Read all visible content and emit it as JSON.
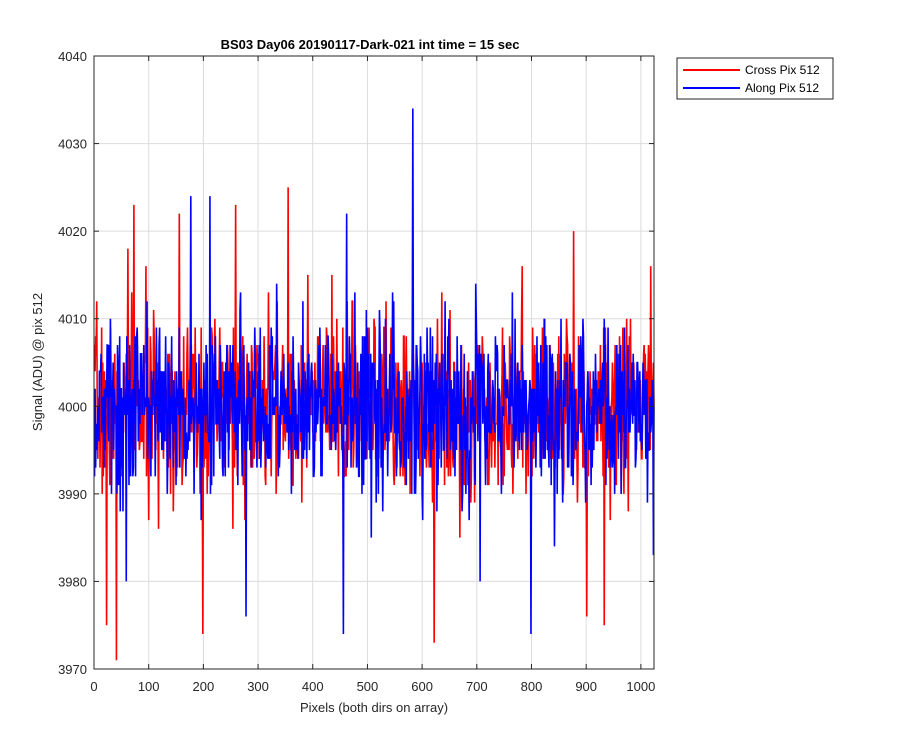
{
  "chart_data": {
    "type": "line",
    "title": "BS03 Day06 20190117-Dark-021 int time = 15 sec",
    "xlabel": "Pixels (both dirs on array)",
    "ylabel": "Signal (ADU) @ pix 512",
    "xlim": [
      0,
      1024
    ],
    "ylim": [
      3970,
      4040
    ],
    "xticks": [
      0,
      100,
      200,
      300,
      400,
      500,
      600,
      700,
      800,
      900,
      1000
    ],
    "yticks": [
      3970,
      3980,
      3990,
      4000,
      4010,
      4020,
      4030,
      4040
    ],
    "grid": true,
    "legend_position": "outside top-right",
    "noise": {
      "center": 4000,
      "typical_spread": 5,
      "note_values_estimated": true
    },
    "series": [
      {
        "name": "Cross Pix 512",
        "color": "#ff0000",
        "seed": 7,
        "extremes": [
          {
            "x": 40,
            "y": 3971
          },
          {
            "x": 22,
            "y": 3975
          },
          {
            "x": 72,
            "y": 4023
          },
          {
            "x": 61,
            "y": 4018
          },
          {
            "x": 155,
            "y": 4022
          },
          {
            "x": 198,
            "y": 3974
          },
          {
            "x": 258,
            "y": 4023
          },
          {
            "x": 354,
            "y": 4025
          },
          {
            "x": 621,
            "y": 3973
          },
          {
            "x": 900,
            "y": 3976
          },
          {
            "x": 932,
            "y": 3975
          },
          {
            "x": 876,
            "y": 4020
          },
          {
            "x": 1017,
            "y": 4016
          }
        ]
      },
      {
        "name": "Along Pix 512",
        "color": "#0000ff",
        "seed": 13,
        "extremes": [
          {
            "x": 582,
            "y": 4034
          },
          {
            "x": 176,
            "y": 4024
          },
          {
            "x": 211,
            "y": 4024
          },
          {
            "x": 461,
            "y": 4022
          },
          {
            "x": 455,
            "y": 3974
          },
          {
            "x": 277,
            "y": 3976
          },
          {
            "x": 798,
            "y": 3974
          },
          {
            "x": 58,
            "y": 3980
          },
          {
            "x": 705,
            "y": 3980
          },
          {
            "x": 1022,
            "y": 3983
          }
        ]
      }
    ]
  }
}
